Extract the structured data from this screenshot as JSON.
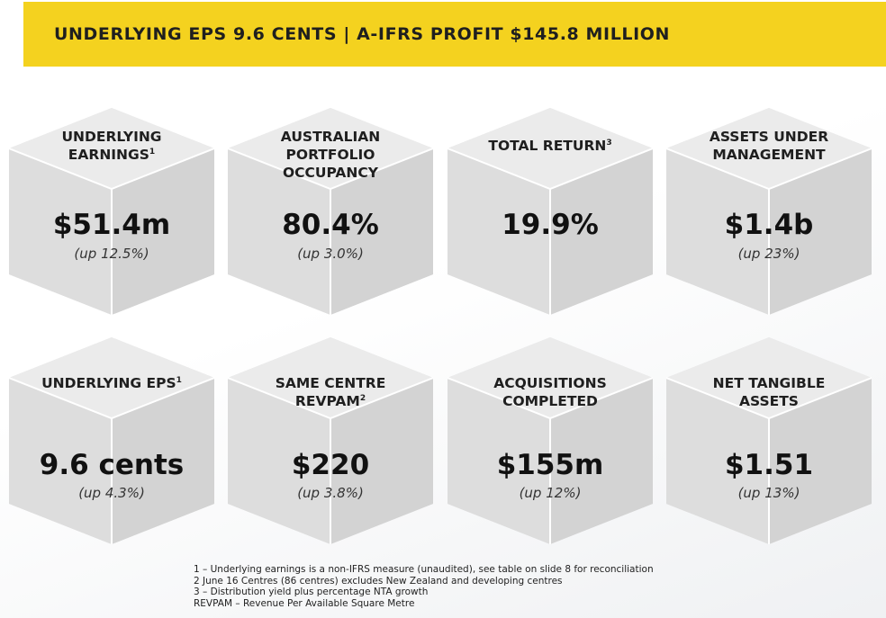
{
  "banner": {
    "title": "UNDERLYING EPS 9.6 CENTS | A-IFRS PROFIT $145.8 MILLION"
  },
  "tiles": [
    {
      "title": "UNDERLYING EARNINGS",
      "sup": "1",
      "value": "$51.4m",
      "sub": "(up 12.5%)"
    },
    {
      "title": "AUSTRALIAN PORTFOLIO OCCUPANCY",
      "sup": "",
      "value": "80.4%",
      "sub": "(up 3.0%)"
    },
    {
      "title": "TOTAL RETURN",
      "sup": "3",
      "value": "19.9%",
      "sub": ""
    },
    {
      "title": "ASSETS UNDER MANAGEMENT",
      "sup": "",
      "value": "$1.4b",
      "sub": "(up 23%)"
    },
    {
      "title": "UNDERLYING EPS",
      "sup": "1",
      "value": "9.6 cents",
      "sub": "(up 4.3%)"
    },
    {
      "title": "SAME CENTRE REVPAM",
      "sup": "2",
      "value": "$220",
      "sub": "(up 3.8%)"
    },
    {
      "title": "ACQUISITIONS COMPLETED",
      "sup": "",
      "value": "$155m",
      "sub": "(up 12%)"
    },
    {
      "title": "NET TANGIBLE ASSETS",
      "sup": "",
      "value": "$1.51",
      "sub": "(up 13%)"
    }
  ],
  "footnotes": [
    "1 – Underlying earnings is a non-IFRS measure (unaudited), see table on slide 8 for reconciliation",
    "2 June 16 Centres (86 centres) excludes New Zealand and developing centres",
    "3 – Distribution yield plus percentage NTA growth",
    "REVPAM – Revenue Per Available Square Metre"
  ],
  "colors": {
    "accent": "#f4d21f",
    "cube_top": "#e9e9e9",
    "cube_left": "#dcdcdc",
    "cube_right": "#d2d2d2"
  }
}
